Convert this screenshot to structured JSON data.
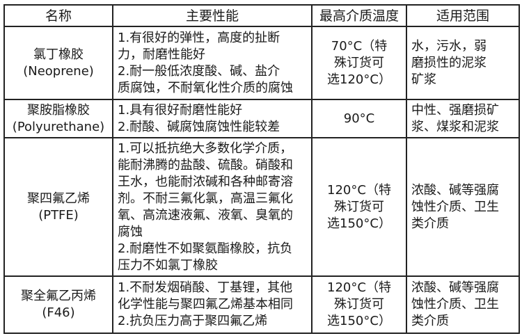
{
  "headers": [
    "名称",
    "主要性能",
    "最高介质温度",
    "适用范围"
  ],
  "rows": [
    {
      "name": "氯丁橡胶\n(Neoprene)",
      "performance": "1.有很好的弹性，高度的扯断\n力，耐磨性能好\n2.耐一般低浓度酸、碱、盐介\n质腐蚀，不耐氧化性介质的腐蚀",
      "max_temp": "70°C（特\n殊订货可\n选120°C）",
      "application": "水，污水，弱\n磨损性的泥浆\n矿浆"
    },
    {
      "name": "聚胺脂橡胶\n(Polyurethane)",
      "performance": "1.具有很好耐磨性能好\n2.耐酸、碱腐蚀腐蚀性能较差",
      "max_temp": "90°C",
      "application": "中性、强磨损矿\n浆、煤浆和泥浆"
    },
    {
      "name": "聚四氟乙烯\n(PTFE)",
      "performance": "1.可以抵抗绝大多数化学介质，\n能耐沸腾的盐酸、硫酸。硝酸和\n王水，也能耐浓碱和各种邮寄溶\n剂。不耐三氟化氯，高温三氟化\n氧、高流速液氟、液氧、臭氧的\n腐蚀\n2.耐磨性不如聚氨酯橡胶，抗负\n压力不如氯丁橡胶",
      "max_temp": "120°C（特\n殊订货可\n选150°C）",
      "application": "浓酸、碱等强腐\n蚀性介质、卫生\n类介质"
    },
    {
      "name": "聚全氟乙丙烯\n(F46)",
      "performance": "1.不耐发烟硝酸、丁基锂，其他\n化学性能与聚四氟乙烯基本相同\n2.抗负压力高于聚四氟乙烯",
      "max_temp": "120°C（特\n殊订货可\n选150°C）",
      "application": "浓酸、碱等强腐\n蚀性介质、卫生\n类介质"
    }
  ]
}
